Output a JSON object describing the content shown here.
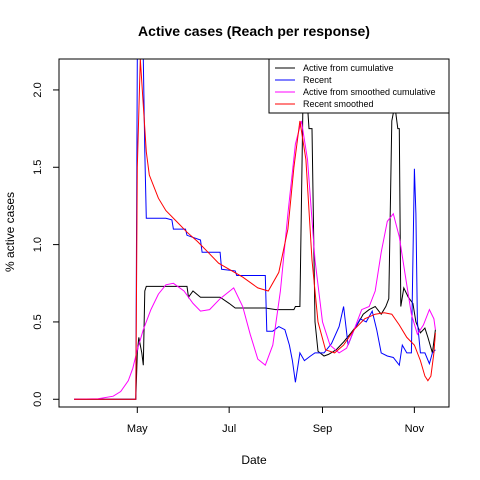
{
  "chart_data": {
    "type": "line",
    "title": "Active cases (Reach per response)",
    "xlabel": "Date",
    "ylabel": "% active cases",
    "x_unit": "date",
    "xlim": [
      "2020-03-10",
      "2020-11-24"
    ],
    "ylim": [
      -0.05,
      2.2
    ],
    "x_ticks": [
      {
        "label": "May",
        "date": "2020-05-01"
      },
      {
        "label": "Jul",
        "date": "2020-07-01"
      },
      {
        "label": "Sep",
        "date": "2020-09-01"
      },
      {
        "label": "Nov",
        "date": "2020-11-01"
      }
    ],
    "y_ticks": [
      0.0,
      0.5,
      1.0,
      1.5,
      2.0
    ],
    "y_tick_labels": [
      "0.0",
      "0.5",
      "1.0",
      "1.5",
      "2.0"
    ],
    "grid": false,
    "legend_position": "top-right",
    "series": [
      {
        "name": "Active from cumulative",
        "color": "#000000",
        "points": [
          [
            "2020-03-20",
            0.0
          ],
          [
            "2020-04-25",
            0.0
          ],
          [
            "2020-04-30",
            0.0
          ],
          [
            "2020-05-01",
            0.3
          ],
          [
            "2020-05-02",
            0.4
          ],
          [
            "2020-05-04",
            0.3
          ],
          [
            "2020-05-05",
            0.22
          ],
          [
            "2020-05-06",
            0.7
          ],
          [
            "2020-05-07",
            0.73
          ],
          [
            "2020-05-20",
            0.73
          ],
          [
            "2020-06-03",
            0.73
          ],
          [
            "2020-06-04",
            0.66
          ],
          [
            "2020-06-07",
            0.7
          ],
          [
            "2020-06-12",
            0.66
          ],
          [
            "2020-06-25",
            0.66
          ],
          [
            "2020-07-01",
            0.62
          ],
          [
            "2020-07-05",
            0.59
          ],
          [
            "2020-07-25",
            0.59
          ],
          [
            "2020-08-01",
            0.58
          ],
          [
            "2020-08-06",
            0.58
          ],
          [
            "2020-08-13",
            0.58
          ],
          [
            "2020-08-14",
            0.6
          ],
          [
            "2020-08-17",
            0.6
          ],
          [
            "2020-08-19",
            1.9
          ],
          [
            "2020-08-22",
            1.9
          ],
          [
            "2020-08-23",
            1.75
          ],
          [
            "2020-08-25",
            1.75
          ],
          [
            "2020-08-27",
            0.5
          ],
          [
            "2020-08-29",
            0.31
          ],
          [
            "2020-09-02",
            0.28
          ],
          [
            "2020-09-05",
            0.29
          ],
          [
            "2020-09-10",
            0.32
          ],
          [
            "2020-09-15",
            0.37
          ],
          [
            "2020-09-20",
            0.43
          ],
          [
            "2020-09-24",
            0.48
          ],
          [
            "2020-09-28",
            0.55
          ],
          [
            "2020-10-02",
            0.58
          ],
          [
            "2020-10-06",
            0.6
          ],
          [
            "2020-10-10",
            0.55
          ],
          [
            "2020-10-13",
            0.6
          ],
          [
            "2020-10-15",
            0.65
          ],
          [
            "2020-10-17",
            1.8
          ],
          [
            "2020-10-19",
            1.9
          ],
          [
            "2020-10-21",
            1.75
          ],
          [
            "2020-10-22",
            1.75
          ],
          [
            "2020-10-23",
            0.6
          ],
          [
            "2020-10-25",
            0.72
          ],
          [
            "2020-10-28",
            0.66
          ],
          [
            "2020-10-31",
            0.62
          ],
          [
            "2020-11-02",
            0.5
          ],
          [
            "2020-11-05",
            0.43
          ],
          [
            "2020-11-08",
            0.46
          ],
          [
            "2020-11-10",
            0.4
          ],
          [
            "2020-11-13",
            0.3
          ],
          [
            "2020-11-15",
            0.45
          ]
        ]
      },
      {
        "name": "Recent",
        "color": "#0000ff",
        "points": [
          [
            "2020-03-20",
            0.0
          ],
          [
            "2020-04-30",
            0.0
          ],
          [
            "2020-05-01",
            2.2
          ],
          [
            "2020-05-05",
            2.2
          ],
          [
            "2020-05-06",
            1.6
          ],
          [
            "2020-05-07",
            1.17
          ],
          [
            "2020-05-20",
            1.17
          ],
          [
            "2020-05-24",
            1.16
          ],
          [
            "2020-05-25",
            1.1
          ],
          [
            "2020-06-02",
            1.1
          ],
          [
            "2020-06-03",
            1.06
          ],
          [
            "2020-06-12",
            1.03
          ],
          [
            "2020-06-13",
            0.95
          ],
          [
            "2020-06-25",
            0.95
          ],
          [
            "2020-06-26",
            0.84
          ],
          [
            "2020-07-05",
            0.83
          ],
          [
            "2020-07-06",
            0.8
          ],
          [
            "2020-07-25",
            0.8
          ],
          [
            "2020-07-26",
            0.44
          ],
          [
            "2020-07-30",
            0.44
          ],
          [
            "2020-08-03",
            0.47
          ],
          [
            "2020-08-07",
            0.45
          ],
          [
            "2020-08-10",
            0.35
          ],
          [
            "2020-08-12",
            0.25
          ],
          [
            "2020-08-14",
            0.11
          ],
          [
            "2020-08-17",
            0.3
          ],
          [
            "2020-08-20",
            0.25
          ],
          [
            "2020-08-24",
            0.28
          ],
          [
            "2020-08-27",
            0.3
          ],
          [
            "2020-09-02",
            0.3
          ],
          [
            "2020-09-07",
            0.36
          ],
          [
            "2020-09-12",
            0.47
          ],
          [
            "2020-09-15",
            0.6
          ],
          [
            "2020-09-18",
            0.35
          ],
          [
            "2020-09-22",
            0.45
          ],
          [
            "2020-09-26",
            0.52
          ],
          [
            "2020-09-30",
            0.5
          ],
          [
            "2020-10-04",
            0.57
          ],
          [
            "2020-10-07",
            0.45
          ],
          [
            "2020-10-10",
            0.3
          ],
          [
            "2020-10-14",
            0.28
          ],
          [
            "2020-10-18",
            0.27
          ],
          [
            "2020-10-22",
            0.22
          ],
          [
            "2020-10-24",
            0.35
          ],
          [
            "2020-10-27",
            0.3
          ],
          [
            "2020-10-30",
            0.3
          ],
          [
            "2020-11-01",
            1.49
          ],
          [
            "2020-11-02",
            1.2
          ],
          [
            "2020-11-03",
            0.5
          ],
          [
            "2020-11-05",
            0.3
          ],
          [
            "2020-11-08",
            0.3
          ],
          [
            "2020-11-11",
            0.23
          ],
          [
            "2020-11-13",
            0.3
          ],
          [
            "2020-11-15",
            0.32
          ]
        ]
      },
      {
        "name": "Active from smoothed cumulative",
        "color": "#ff00ff",
        "points": [
          [
            "2020-03-20",
            0.0
          ],
          [
            "2020-04-05",
            0.003
          ],
          [
            "2020-04-15",
            0.02
          ],
          [
            "2020-04-20",
            0.05
          ],
          [
            "2020-04-25",
            0.12
          ],
          [
            "2020-04-28",
            0.2
          ],
          [
            "2020-05-01",
            0.32
          ],
          [
            "2020-05-05",
            0.45
          ],
          [
            "2020-05-10",
            0.58
          ],
          [
            "2020-05-15",
            0.68
          ],
          [
            "2020-05-20",
            0.74
          ],
          [
            "2020-05-25",
            0.75
          ],
          [
            "2020-06-01",
            0.7
          ],
          [
            "2020-06-07",
            0.62
          ],
          [
            "2020-06-12",
            0.57
          ],
          [
            "2020-06-18",
            0.58
          ],
          [
            "2020-06-25",
            0.65
          ],
          [
            "2020-07-04",
            0.72
          ],
          [
            "2020-07-10",
            0.6
          ],
          [
            "2020-07-15",
            0.42
          ],
          [
            "2020-07-20",
            0.26
          ],
          [
            "2020-07-25",
            0.22
          ],
          [
            "2020-07-30",
            0.35
          ],
          [
            "2020-08-04",
            0.7
          ],
          [
            "2020-08-09",
            1.2
          ],
          [
            "2020-08-14",
            1.65
          ],
          [
            "2020-08-18",
            1.8
          ],
          [
            "2020-08-22",
            1.55
          ],
          [
            "2020-08-27",
            0.9
          ],
          [
            "2020-09-01",
            0.5
          ],
          [
            "2020-09-06",
            0.35
          ],
          [
            "2020-09-12",
            0.3
          ],
          [
            "2020-09-17",
            0.33
          ],
          [
            "2020-09-22",
            0.45
          ],
          [
            "2020-09-27",
            0.58
          ],
          [
            "2020-10-02",
            0.6
          ],
          [
            "2020-10-06",
            0.7
          ],
          [
            "2020-10-10",
            0.95
          ],
          [
            "2020-10-14",
            1.15
          ],
          [
            "2020-10-18",
            1.2
          ],
          [
            "2020-10-22",
            1.05
          ],
          [
            "2020-10-26",
            0.8
          ],
          [
            "2020-10-30",
            0.55
          ],
          [
            "2020-11-03",
            0.42
          ],
          [
            "2020-11-07",
            0.48
          ],
          [
            "2020-11-11",
            0.58
          ],
          [
            "2020-11-14",
            0.52
          ],
          [
            "2020-11-15",
            0.45
          ]
        ]
      },
      {
        "name": "Recent smoothed",
        "color": "#ff0000",
        "points": [
          [
            "2020-03-20",
            0.0
          ],
          [
            "2020-04-20",
            0.0
          ],
          [
            "2020-04-30",
            0.0
          ],
          [
            "2020-05-01",
            1.5
          ],
          [
            "2020-05-03",
            2.2
          ],
          [
            "2020-05-05",
            1.9
          ],
          [
            "2020-05-07",
            1.6
          ],
          [
            "2020-05-09",
            1.45
          ],
          [
            "2020-05-15",
            1.3
          ],
          [
            "2020-05-20",
            1.22
          ],
          [
            "2020-05-27",
            1.15
          ],
          [
            "2020-06-03",
            1.08
          ],
          [
            "2020-06-10",
            1.02
          ],
          [
            "2020-06-17",
            0.95
          ],
          [
            "2020-06-24",
            0.88
          ],
          [
            "2020-07-01",
            0.84
          ],
          [
            "2020-07-10",
            0.79
          ],
          [
            "2020-07-20",
            0.72
          ],
          [
            "2020-07-27",
            0.7
          ],
          [
            "2020-08-03",
            0.82
          ],
          [
            "2020-08-09",
            1.1
          ],
          [
            "2020-08-13",
            1.5
          ],
          [
            "2020-08-17",
            1.8
          ],
          [
            "2020-08-21",
            1.55
          ],
          [
            "2020-08-25",
            0.9
          ],
          [
            "2020-08-29",
            0.5
          ],
          [
            "2020-09-03",
            0.32
          ],
          [
            "2020-09-09",
            0.3
          ],
          [
            "2020-09-15",
            0.35
          ],
          [
            "2020-09-22",
            0.45
          ],
          [
            "2020-09-29",
            0.52
          ],
          [
            "2020-10-06",
            0.55
          ],
          [
            "2020-10-12",
            0.56
          ],
          [
            "2020-10-17",
            0.55
          ],
          [
            "2020-10-22",
            0.48
          ],
          [
            "2020-10-27",
            0.4
          ],
          [
            "2020-11-01",
            0.35
          ],
          [
            "2020-11-05",
            0.25
          ],
          [
            "2020-11-08",
            0.15
          ],
          [
            "2020-11-10",
            0.12
          ],
          [
            "2020-11-12",
            0.15
          ],
          [
            "2020-11-14",
            0.3
          ],
          [
            "2020-11-15",
            0.43
          ]
        ]
      }
    ]
  }
}
